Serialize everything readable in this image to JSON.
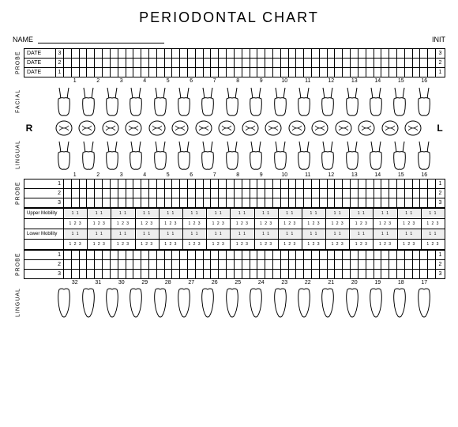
{
  "title": "PERIODONTAL CHART",
  "name_label": "NAME",
  "init_label": "INIT",
  "date_label": "DATE",
  "probe_label": "PROBE",
  "facial_label": "FACIAL",
  "lingual_label": "LINGUAL",
  "side_r": "R",
  "side_l": "L",
  "upper_mobility": "Upper Mobility",
  "lower_mobility": "Lower Mobility",
  "probe_nums": [
    "3",
    "2",
    "1"
  ],
  "probe_nums_rev": [
    "1",
    "2",
    "3"
  ],
  "upper_teeth": [
    "1",
    "2",
    "3",
    "4",
    "5",
    "6",
    "7",
    "8",
    "9",
    "10",
    "11",
    "12",
    "13",
    "14",
    "15",
    "16"
  ],
  "lower_teeth": [
    "32",
    "31",
    "30",
    "29",
    "28",
    "27",
    "26",
    "25",
    "24",
    "23",
    "22",
    "21",
    "20",
    "19",
    "18",
    "17"
  ],
  "mob_values": "1 2 3",
  "mob_values_short": "1 1",
  "grid_cols": 48,
  "colors": {
    "border": "#000000",
    "bg": "#ffffff",
    "mob_shade": "#eeeeee"
  }
}
